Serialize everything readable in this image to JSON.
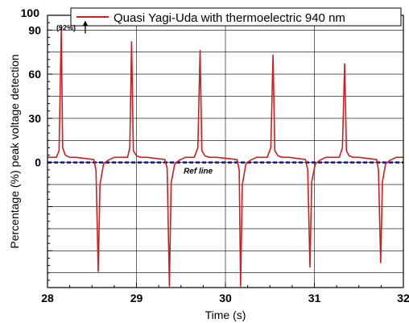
{
  "chart_data": {
    "type": "line",
    "title": "",
    "xlabel": "Time (s)",
    "ylabel": "Percentage (%) peak voltage detection",
    "xlim": [
      28,
      32
    ],
    "ylim": [
      -85,
      100
    ],
    "x_ticks": [
      "28",
      "29",
      "30",
      "31",
      "32"
    ],
    "y_ticks": [
      "100",
      "90",
      "60",
      "30",
      "0"
    ],
    "grid": true,
    "legend_position": "top-right",
    "series": [
      {
        "name": "Quasi Yagi-Uda with thermoelectric 940 nm",
        "color": "#cc1f1f",
        "x": [
          28.0,
          28.1,
          28.13,
          28.155,
          28.17,
          28.2,
          28.25,
          28.32,
          28.52,
          28.545,
          28.57,
          28.59,
          28.63,
          28.68,
          28.75,
          28.9,
          28.925,
          28.945,
          28.965,
          29.0,
          29.05,
          29.12,
          29.32,
          29.345,
          29.37,
          29.39,
          29.43,
          29.48,
          29.55,
          29.65,
          29.69,
          29.715,
          29.735,
          29.77,
          29.82,
          29.9,
          30.13,
          30.155,
          30.17,
          30.19,
          30.23,
          30.28,
          30.35,
          30.47,
          30.51,
          30.535,
          30.555,
          30.59,
          30.64,
          30.72,
          30.9,
          30.925,
          30.95,
          30.97,
          31.01,
          31.06,
          31.13,
          31.28,
          31.315,
          31.34,
          31.36,
          31.39,
          31.44,
          31.5,
          31.7,
          31.72,
          31.745,
          31.765,
          31.8,
          31.85,
          31.92,
          32.0
        ],
        "y": [
          3.5,
          3.5,
          8,
          92,
          10,
          5,
          3.5,
          3.5,
          2,
          -5,
          -74,
          -15,
          -1,
          1.5,
          3.5,
          3.5,
          10,
          82,
          8,
          4.5,
          3.5,
          3.5,
          2,
          -4,
          -84,
          -14,
          -1,
          1.5,
          3.5,
          3.5,
          10,
          76,
          8,
          4.5,
          3.5,
          3.5,
          2,
          -5,
          -84,
          -15,
          -1,
          1.5,
          3.5,
          3.5,
          10,
          73,
          8,
          4.5,
          3.5,
          3.5,
          2,
          -5,
          -71,
          -13,
          -1,
          1.5,
          3.5,
          3.5,
          10,
          67,
          8,
          4.5,
          3.5,
          3.5,
          2,
          -5,
          -68,
          -13,
          -1,
          1.5,
          3.5,
          3.5
        ]
      }
    ],
    "ref_line": {
      "label": "Ref line",
      "y": 0,
      "color": "#1a1aa6"
    },
    "annotations": [
      {
        "text": "(92%)",
        "x": 28.28,
        "y": 92,
        "arrow": "up"
      }
    ]
  }
}
